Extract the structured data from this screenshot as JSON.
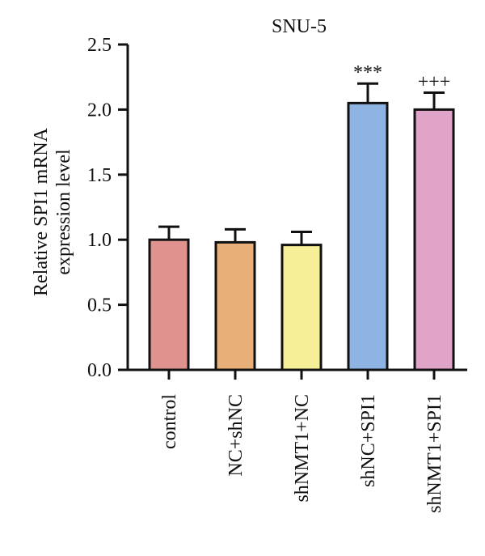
{
  "chart_data": {
    "type": "bar",
    "title": "SNU-5",
    "ylabel_lines": [
      "Relative SPI1 mRNA",
      "expression level"
    ],
    "xlabel": "",
    "categories": [
      "control",
      "NC+shNC",
      "shNMT1+NC",
      "shNC+SPI1",
      "shNMT1+SPI1"
    ],
    "values": [
      1.0,
      0.98,
      0.96,
      2.05,
      2.0
    ],
    "errors": [
      0.1,
      0.1,
      0.1,
      0.15,
      0.13
    ],
    "colors": [
      "#e0928f",
      "#e8b078",
      "#f7ef98",
      "#8db4e2",
      "#e0a4c8"
    ],
    "annotations": [
      "",
      "",
      "",
      "***",
      "+++"
    ],
    "ylim": [
      0,
      2.5
    ],
    "yticks": [
      "0.0",
      "0.5",
      "1.0",
      "1.5",
      "2.0",
      "2.5"
    ],
    "ytick_values": [
      0,
      0.5,
      1.0,
      1.5,
      2.0,
      2.5
    ],
    "grid": false,
    "legend": "none"
  }
}
